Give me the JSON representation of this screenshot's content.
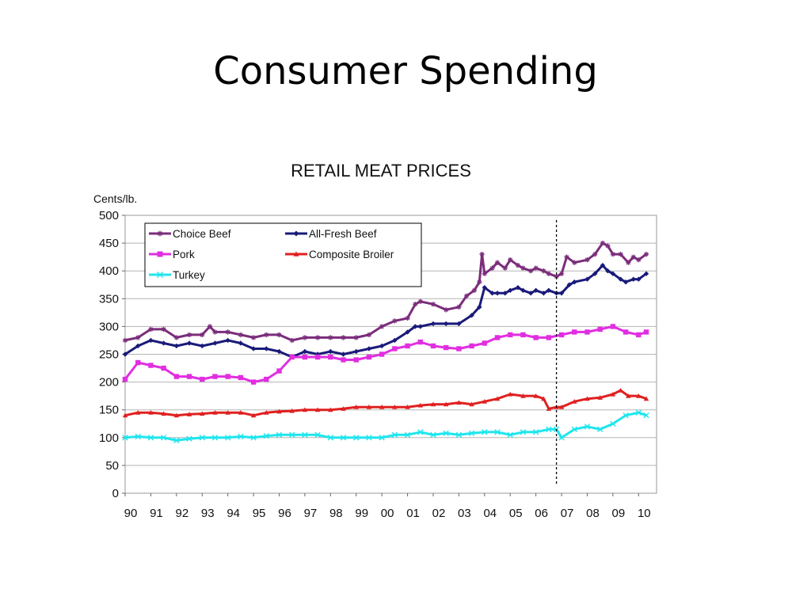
{
  "slide": {
    "title": "Consumer Spending"
  },
  "chart_data": {
    "type": "line",
    "title": "RETAIL MEAT PRICES",
    "ylabel": "Cents/lb.",
    "xlabel": "",
    "ylim": [
      0,
      500
    ],
    "yticks": [
      0,
      50,
      100,
      150,
      200,
      250,
      300,
      350,
      400,
      450,
      500
    ],
    "xlim": [
      1990,
      2010.7
    ],
    "xticks": [
      1990,
      1991,
      1992,
      1993,
      1994,
      1995,
      1996,
      1997,
      1998,
      1999,
      2000,
      2001,
      2002,
      2003,
      2004,
      2005,
      2006,
      2007,
      2008,
      2009,
      2010
    ],
    "xtick_labels": [
      "90",
      "91",
      "92",
      "93",
      "94",
      "95",
      "96",
      "97",
      "98",
      "99",
      "00",
      "01",
      "02",
      "03",
      "04",
      "05",
      "06",
      "07",
      "08",
      "09",
      "10"
    ],
    "grid": "horizontal",
    "legend_position": "top-left",
    "vline_x": 2006.8,
    "series": [
      {
        "name": "Choice Beef",
        "color": "#7b2d7b",
        "marker": "star",
        "x": [
          1990,
          1990.5,
          1991,
          1991.5,
          1992,
          1992.5,
          1993,
          1993.3,
          1993.5,
          1994,
          1994.5,
          1995,
          1995.5,
          1996,
          1996.5,
          1997,
          1997.5,
          1998,
          1998.5,
          1999,
          1999.5,
          2000,
          2000.5,
          2001,
          2001.3,
          2001.5,
          2002,
          2002.5,
          2003,
          2003.3,
          2003.6,
          2003.8,
          2003.9,
          2004,
          2004.3,
          2004.5,
          2004.8,
          2005,
          2005.3,
          2005.5,
          2005.8,
          2006,
          2006.3,
          2006.5,
          2006.8,
          2007,
          2007.2,
          2007.5,
          2008,
          2008.3,
          2008.6,
          2008.8,
          2009,
          2009.3,
          2009.6,
          2009.8,
          2010,
          2010.3
        ],
        "y": [
          275,
          280,
          295,
          295,
          280,
          285,
          285,
          300,
          290,
          290,
          285,
          280,
          285,
          285,
          275,
          280,
          280,
          280,
          280,
          280,
          285,
          300,
          310,
          315,
          340,
          345,
          340,
          330,
          335,
          355,
          365,
          380,
          430,
          395,
          405,
          415,
          405,
          420,
          410,
          405,
          400,
          405,
          400,
          395,
          390,
          395,
          425,
          415,
          420,
          430,
          450,
          445,
          430,
          430,
          415,
          425,
          420,
          430
        ]
      },
      {
        "name": "All-Fresh Beef",
        "color": "#1a1a7a",
        "marker": "diamond",
        "x": [
          1990,
          1990.5,
          1991,
          1991.5,
          1992,
          1992.5,
          1993,
          1993.5,
          1994,
          1994.5,
          1995,
          1995.5,
          1996,
          1996.5,
          1997,
          1997.5,
          1998,
          1998.5,
          1999,
          1999.5,
          2000,
          2000.5,
          2001,
          2001.3,
          2001.5,
          2002,
          2002.5,
          2003,
          2003.5,
          2003.8,
          2004,
          2004.3,
          2004.5,
          2004.8,
          2005,
          2005.3,
          2005.5,
          2005.8,
          2006,
          2006.3,
          2006.5,
          2006.8,
          2007,
          2007.3,
          2007.5,
          2008,
          2008.3,
          2008.6,
          2008.8,
          2009,
          2009.3,
          2009.5,
          2009.8,
          2010,
          2010.3
        ],
        "y": [
          250,
          265,
          275,
          270,
          265,
          270,
          265,
          270,
          275,
          270,
          260,
          260,
          255,
          245,
          255,
          250,
          255,
          250,
          255,
          260,
          265,
          275,
          290,
          300,
          300,
          305,
          305,
          305,
          320,
          335,
          370,
          360,
          360,
          360,
          365,
          370,
          365,
          360,
          365,
          360,
          365,
          360,
          360,
          375,
          380,
          385,
          395,
          410,
          400,
          395,
          385,
          380,
          385,
          385,
          395
        ]
      },
      {
        "name": "Pork",
        "color": "#e12ee1",
        "marker": "square",
        "x": [
          1990,
          1990.5,
          1991,
          1991.5,
          1992,
          1992.5,
          1993,
          1993.5,
          1994,
          1994.5,
          1995,
          1995.5,
          1996,
          1996.5,
          1997,
          1997.5,
          1998,
          1998.5,
          1999,
          1999.5,
          2000,
          2000.5,
          2001,
          2001.5,
          2002,
          2002.5,
          2003,
          2003.5,
          2004,
          2004.5,
          2005,
          2005.5,
          2006,
          2006.5,
          2007,
          2007.5,
          2008,
          2008.5,
          2009,
          2009.5,
          2010,
          2010.3
        ],
        "y": [
          205,
          235,
          230,
          225,
          210,
          210,
          205,
          210,
          210,
          208,
          200,
          205,
          220,
          245,
          245,
          245,
          245,
          240,
          240,
          245,
          250,
          260,
          265,
          272,
          265,
          262,
          260,
          265,
          270,
          280,
          285,
          285,
          280,
          280,
          285,
          290,
          290,
          295,
          300,
          290,
          285,
          290
        ]
      },
      {
        "name": "Composite Broiler",
        "color": "#e02020",
        "marker": "triangle",
        "x": [
          1990,
          1990.5,
          1991,
          1991.5,
          1992,
          1992.5,
          1993,
          1993.5,
          1994,
          1994.5,
          1995,
          1995.5,
          1996,
          1996.5,
          1997,
          1997.5,
          1998,
          1998.5,
          1999,
          1999.5,
          2000,
          2000.5,
          2001,
          2001.5,
          2002,
          2002.5,
          2003,
          2003.5,
          2004,
          2004.5,
          2005,
          2005.5,
          2006,
          2006.3,
          2006.5,
          2006.8,
          2007,
          2007.5,
          2008,
          2008.5,
          2009,
          2009.3,
          2009.6,
          2010,
          2010.3
        ],
        "y": [
          140,
          145,
          145,
          143,
          140,
          142,
          143,
          145,
          145,
          145,
          140,
          145,
          147,
          148,
          150,
          150,
          150,
          152,
          155,
          155,
          155,
          155,
          155,
          158,
          160,
          160,
          163,
          160,
          165,
          170,
          178,
          175,
          175,
          170,
          152,
          155,
          155,
          165,
          170,
          172,
          178,
          185,
          175,
          175,
          170
        ]
      },
      {
        "name": "Turkey",
        "color": "#1ee6ee",
        "marker": "x",
        "x": [
          1990,
          1990.5,
          1991,
          1991.5,
          1992,
          1992.5,
          1993,
          1993.5,
          1994,
          1994.5,
          1995,
          1995.5,
          1996,
          1996.5,
          1997,
          1997.5,
          1998,
          1998.5,
          1999,
          1999.5,
          2000,
          2000.5,
          2001,
          2001.5,
          2002,
          2002.5,
          2003,
          2003.5,
          2004,
          2004.5,
          2005,
          2005.5,
          2006,
          2006.5,
          2006.8,
          2007,
          2007.5,
          2008,
          2008.5,
          2009,
          2009.5,
          2010,
          2010.3
        ],
        "y": [
          100,
          102,
          100,
          100,
          95,
          98,
          100,
          100,
          100,
          102,
          100,
          103,
          105,
          105,
          105,
          105,
          100,
          100,
          100,
          100,
          100,
          105,
          105,
          110,
          105,
          108,
          105,
          108,
          110,
          110,
          105,
          110,
          110,
          115,
          115,
          100,
          115,
          120,
          115,
          125,
          140,
          145,
          140
        ]
      }
    ]
  }
}
